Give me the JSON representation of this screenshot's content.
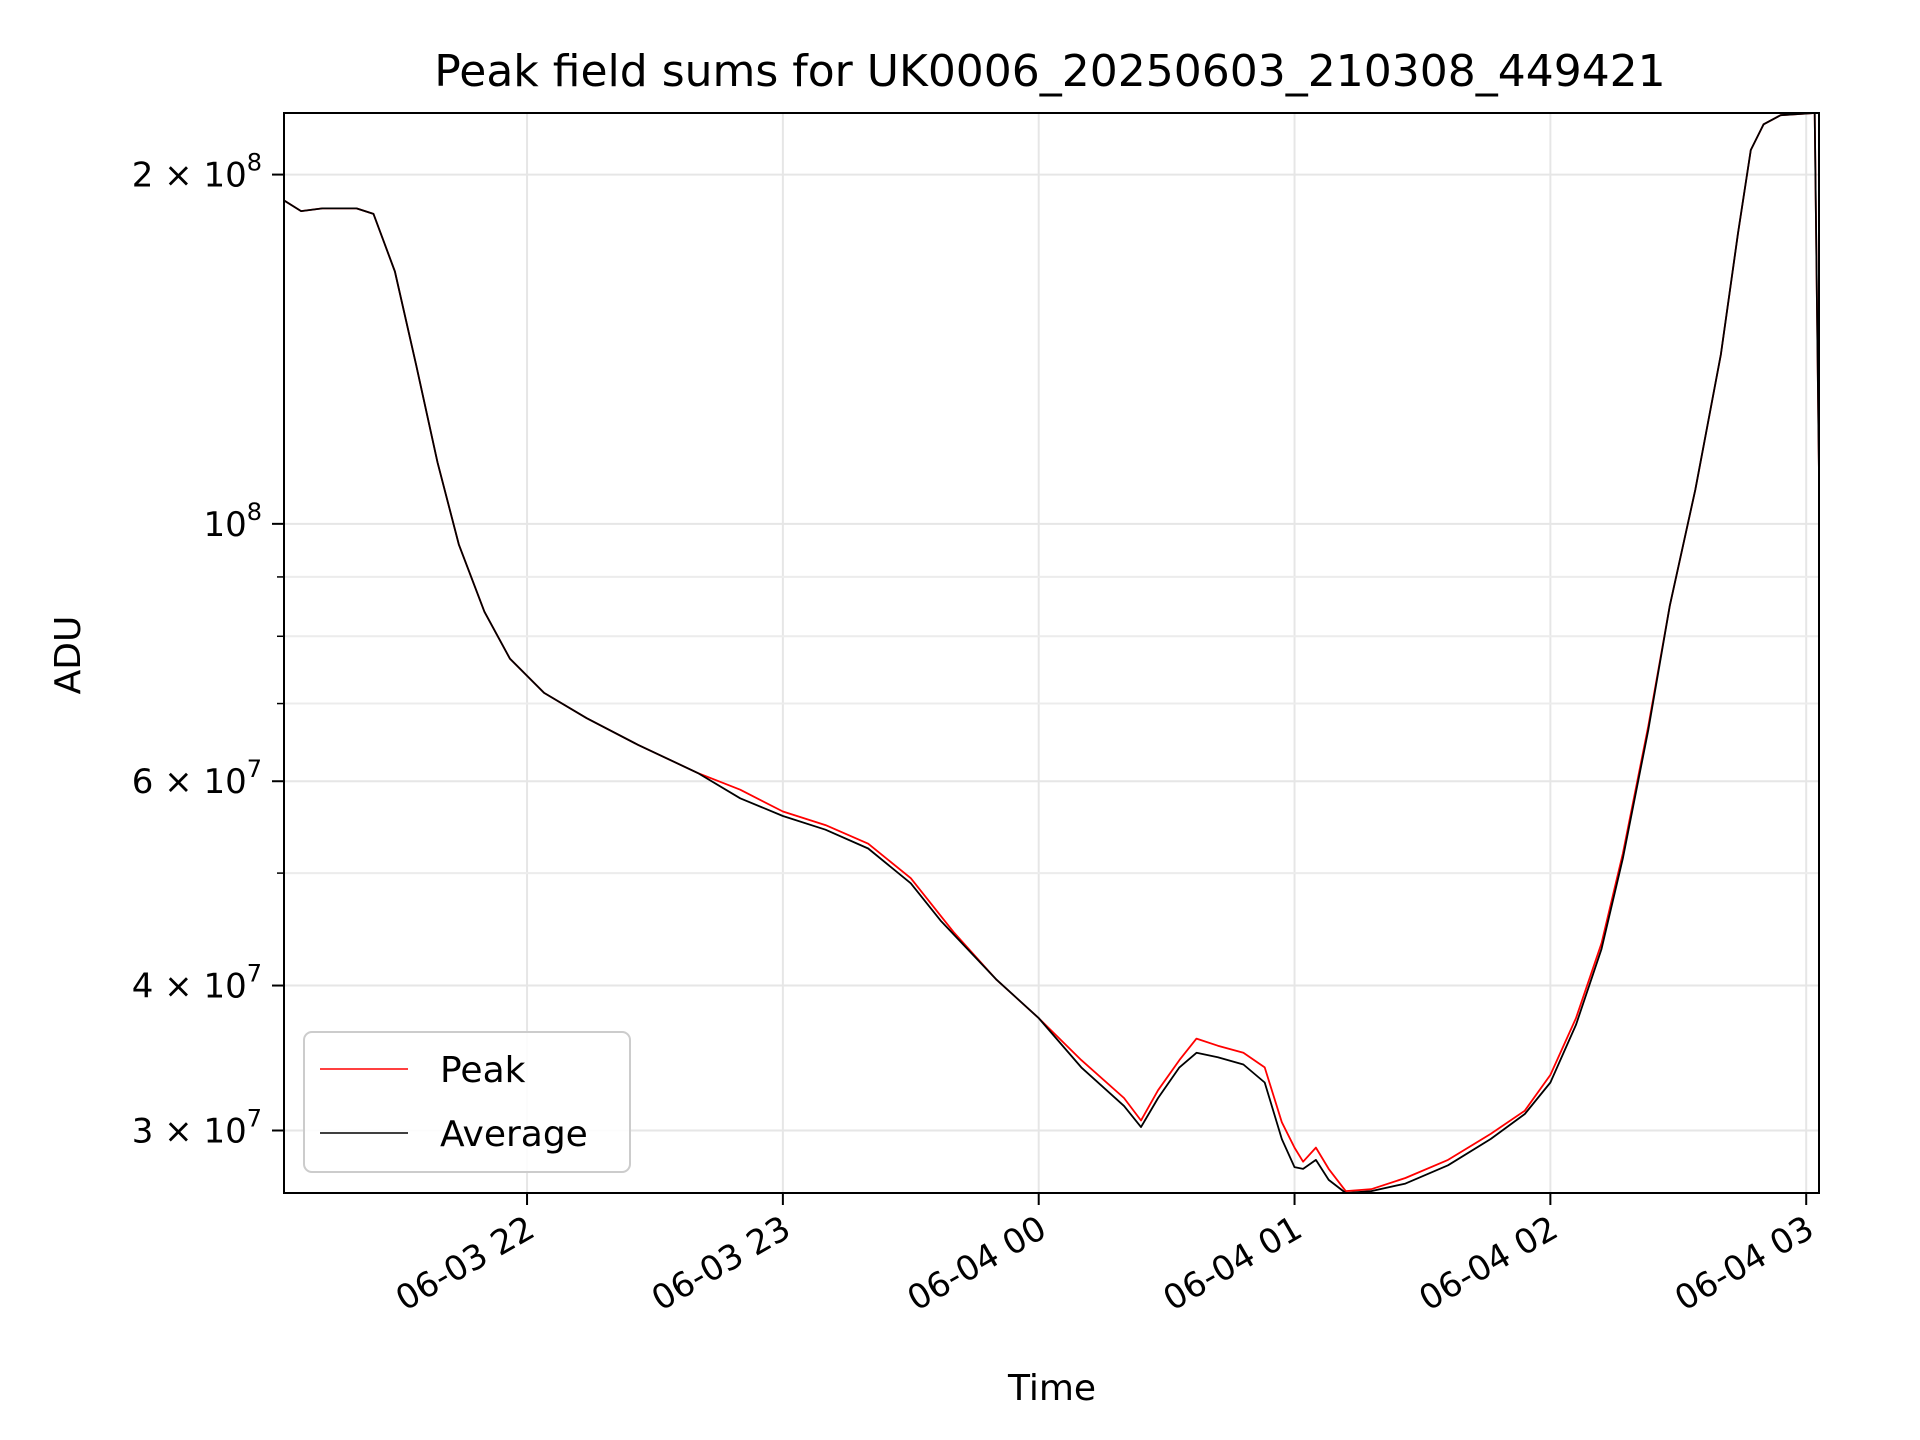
{
  "chart_data": {
    "type": "line",
    "title": "Peak field sums for UK0006_20250603_210308_449421",
    "xlabel": "Time",
    "ylabel": "ADU",
    "yscale": "log",
    "xlim": [
      "2025-06-03T21:03",
      "2025-06-04T03:03"
    ],
    "ylim": [
      26500000,
      226000000
    ],
    "grid": true,
    "legend_position": "lower-left",
    "x_ticks": [
      {
        "value": "2025-06-03T22:00",
        "label": "06-03 22"
      },
      {
        "value": "2025-06-03T23:00",
        "label": "06-03 23"
      },
      {
        "value": "2025-06-04T00:00",
        "label": "06-04 00"
      },
      {
        "value": "2025-06-04T01:00",
        "label": "06-04 01"
      },
      {
        "value": "2025-06-04T02:00",
        "label": "06-04 02"
      },
      {
        "value": "2025-06-04T03:00",
        "label": "06-04 03"
      }
    ],
    "y_ticks": [
      {
        "value": 30000000,
        "mantissa": "3",
        "exp": "7"
      },
      {
        "value": 40000000,
        "mantissa": "4",
        "exp": "7"
      },
      {
        "value": 60000000,
        "mantissa": "6",
        "exp": "7"
      },
      {
        "value": 100000000,
        "mantissa": "",
        "exp": "8"
      },
      {
        "value": 200000000,
        "mantissa": "2",
        "exp": "8"
      }
    ],
    "y_minor_ticks": [
      50000000,
      70000000,
      80000000,
      90000000
    ],
    "series": [
      {
        "name": "Peak",
        "color": "#ff0000",
        "points": [
          [
            "2025-06-03T21:03",
            190000000
          ],
          [
            "2025-06-03T21:07",
            186000000
          ],
          [
            "2025-06-03T21:12",
            187000000
          ],
          [
            "2025-06-03T21:20",
            187000000
          ],
          [
            "2025-06-03T21:24",
            185000000
          ],
          [
            "2025-06-03T21:29",
            165000000
          ],
          [
            "2025-06-03T21:34",
            137000000
          ],
          [
            "2025-06-03T21:39",
            113000000
          ],
          [
            "2025-06-03T21:44",
            96000000
          ],
          [
            "2025-06-03T21:50",
            84000000
          ],
          [
            "2025-06-03T21:56",
            76500000
          ],
          [
            "2025-06-03T22:04",
            71500000
          ],
          [
            "2025-06-03T22:14",
            68000000
          ],
          [
            "2025-06-03T22:26",
            64500000
          ],
          [
            "2025-06-03T22:40",
            61000000
          ],
          [
            "2025-06-03T22:50",
            59000000
          ],
          [
            "2025-06-03T23:00",
            56500000
          ],
          [
            "2025-06-03T23:10",
            55000000
          ],
          [
            "2025-06-03T23:20",
            53000000
          ],
          [
            "2025-06-03T23:30",
            49500000
          ],
          [
            "2025-06-03T23:40",
            44500000
          ],
          [
            "2025-06-03T23:50",
            40500000
          ],
          [
            "2025-06-04T00:00",
            37500000
          ],
          [
            "2025-06-04T00:10",
            34500000
          ],
          [
            "2025-06-04T00:20",
            32000000
          ],
          [
            "2025-06-04T00:24",
            30600000
          ],
          [
            "2025-06-04T00:28",
            32500000
          ],
          [
            "2025-06-04T00:33",
            34500000
          ],
          [
            "2025-06-04T00:37",
            36000000
          ],
          [
            "2025-06-04T00:42",
            35500000
          ],
          [
            "2025-06-04T00:48",
            35000000
          ],
          [
            "2025-06-04T00:53",
            34000000
          ],
          [
            "2025-06-04T00:57",
            30500000
          ],
          [
            "2025-06-04T01:00",
            29000000
          ],
          [
            "2025-06-04T01:02",
            28200000
          ],
          [
            "2025-06-04T01:05",
            29000000
          ],
          [
            "2025-06-04T01:08",
            27800000
          ],
          [
            "2025-06-04T01:12",
            26600000
          ],
          [
            "2025-06-04T01:18",
            26700000
          ],
          [
            "2025-06-04T01:26",
            27300000
          ],
          [
            "2025-06-04T01:36",
            28300000
          ],
          [
            "2025-06-04T01:46",
            29800000
          ],
          [
            "2025-06-04T01:54",
            31200000
          ],
          [
            "2025-06-04T02:00",
            33500000
          ],
          [
            "2025-06-04T02:06",
            37500000
          ],
          [
            "2025-06-04T02:12",
            43500000
          ],
          [
            "2025-06-04T02:17",
            52000000
          ],
          [
            "2025-06-04T02:23",
            67000000
          ],
          [
            "2025-06-04T02:28",
            85000000
          ],
          [
            "2025-06-04T02:34",
            107000000
          ],
          [
            "2025-06-04T02:40",
            140000000
          ],
          [
            "2025-06-04T02:44",
            178000000
          ],
          [
            "2025-06-04T02:47",
            210000000
          ],
          [
            "2025-06-04T02:50",
            221000000
          ],
          [
            "2025-06-04T02:54",
            225000000
          ],
          [
            "2025-06-04T03:02",
            226000000
          ],
          [
            "2025-06-04T03:03",
            110000000
          ]
        ]
      },
      {
        "name": "Average",
        "color": "#000000",
        "points": [
          [
            "2025-06-03T21:03",
            190000000
          ],
          [
            "2025-06-03T21:07",
            186000000
          ],
          [
            "2025-06-03T21:12",
            187000000
          ],
          [
            "2025-06-03T21:20",
            187000000
          ],
          [
            "2025-06-03T21:24",
            185000000
          ],
          [
            "2025-06-03T21:29",
            165000000
          ],
          [
            "2025-06-03T21:34",
            137000000
          ],
          [
            "2025-06-03T21:39",
            113000000
          ],
          [
            "2025-06-03T21:44",
            96000000
          ],
          [
            "2025-06-03T21:50",
            84000000
          ],
          [
            "2025-06-03T21:56",
            76500000
          ],
          [
            "2025-06-03T22:04",
            71500000
          ],
          [
            "2025-06-03T22:14",
            68000000
          ],
          [
            "2025-06-03T22:26",
            64500000
          ],
          [
            "2025-06-03T22:40",
            61000000
          ],
          [
            "2025-06-03T22:50",
            58000000
          ],
          [
            "2025-06-03T23:00",
            56000000
          ],
          [
            "2025-06-03T23:10",
            54500000
          ],
          [
            "2025-06-03T23:20",
            52500000
          ],
          [
            "2025-06-03T23:30",
            49000000
          ],
          [
            "2025-06-03T23:37",
            45500000
          ],
          [
            "2025-06-03T23:50",
            40500000
          ],
          [
            "2025-06-04T00:00",
            37500000
          ],
          [
            "2025-06-04T00:10",
            34000000
          ],
          [
            "2025-06-04T00:20",
            31500000
          ],
          [
            "2025-06-04T00:24",
            30200000
          ],
          [
            "2025-06-04T00:28",
            32000000
          ],
          [
            "2025-06-04T00:33",
            34000000
          ],
          [
            "2025-06-04T00:37",
            35000000
          ],
          [
            "2025-06-04T00:42",
            34700000
          ],
          [
            "2025-06-04T00:48",
            34200000
          ],
          [
            "2025-06-04T00:53",
            33000000
          ],
          [
            "2025-06-04T00:57",
            29500000
          ],
          [
            "2025-06-04T01:00",
            27900000
          ],
          [
            "2025-06-04T01:02",
            27800000
          ],
          [
            "2025-06-04T01:05",
            28300000
          ],
          [
            "2025-06-04T01:08",
            27200000
          ],
          [
            "2025-06-04T01:12",
            26500000
          ],
          [
            "2025-06-04T01:18",
            26600000
          ],
          [
            "2025-06-04T01:26",
            27000000
          ],
          [
            "2025-06-04T01:36",
            28000000
          ],
          [
            "2025-06-04T01:46",
            29500000
          ],
          [
            "2025-06-04T01:54",
            31000000
          ],
          [
            "2025-06-04T02:00",
            33000000
          ],
          [
            "2025-06-04T02:06",
            37000000
          ],
          [
            "2025-06-04T02:12",
            43000000
          ],
          [
            "2025-06-04T02:17",
            51500000
          ],
          [
            "2025-06-04T02:23",
            66500000
          ],
          [
            "2025-06-04T02:28",
            85000000
          ],
          [
            "2025-06-04T02:34",
            107000000
          ],
          [
            "2025-06-04T02:40",
            140000000
          ],
          [
            "2025-06-04T02:44",
            178000000
          ],
          [
            "2025-06-04T02:47",
            210000000
          ],
          [
            "2025-06-04T02:50",
            221000000
          ],
          [
            "2025-06-04T02:54",
            225000000
          ],
          [
            "2025-06-04T03:02",
            226000000
          ],
          [
            "2025-06-04T03:03",
            110000000
          ]
        ]
      }
    ]
  }
}
